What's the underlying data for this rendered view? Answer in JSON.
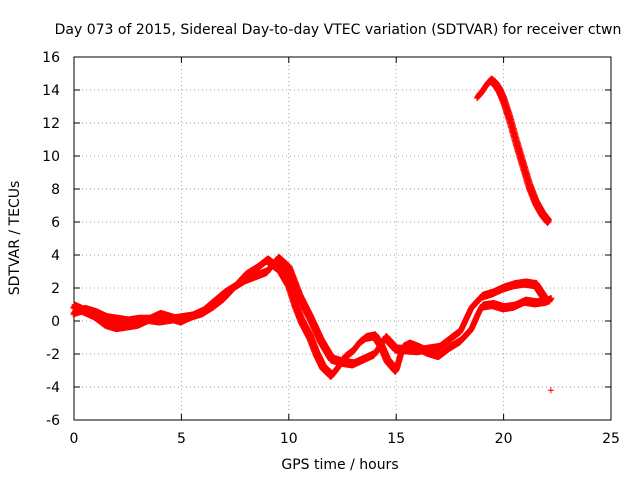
{
  "chart_data": {
    "type": "scatter",
    "title": "Day 073 of 2015, Sidereal Day-to-day VTEC variation (SDTVAR) for receiver ctwn",
    "xlabel": "GPS time / hours",
    "ylabel": "SDTVAR / TECUs",
    "xlim": [
      0,
      25
    ],
    "ylim": [
      -6,
      16
    ],
    "xticks": [
      "0",
      "5",
      "10",
      "15",
      "20",
      "25"
    ],
    "yticks": [
      "-6",
      "-4",
      "-2",
      "0",
      "2",
      "4",
      "6",
      "8",
      "10",
      "12",
      "14",
      "16"
    ],
    "grid": true,
    "marker": "+",
    "color": "#ff0000",
    "series": [
      {
        "name": "SDTVAR",
        "x": [
          0.0,
          0.5,
          1.0,
          1.5,
          2.0,
          2.5,
          3.0,
          3.5,
          4.0,
          4.5,
          5.0,
          5.5,
          6.0,
          6.5,
          7.0,
          7.5,
          8.0,
          8.5,
          9.0,
          9.3,
          9.6,
          10.0,
          10.3,
          10.6,
          11.0,
          11.3,
          11.6,
          12.0,
          12.3,
          12.6,
          13.0,
          13.3,
          13.6,
          14.0,
          14.3,
          14.6,
          15.0,
          15.3,
          15.6,
          16.0,
          16.5,
          17.0,
          17.5,
          18.0,
          18.5,
          18.8,
          19.0,
          19.5,
          20.0,
          20.5,
          21.0,
          21.5,
          22.0,
          22.2
        ],
        "y": [
          0.5,
          0.7,
          0.5,
          0.2,
          0.1,
          0.0,
          0.1,
          0.1,
          0.0,
          0.1,
          0.2,
          0.3,
          0.5,
          0.9,
          1.4,
          2.1,
          2.8,
          3.2,
          3.7,
          3.4,
          3.1,
          2.2,
          1.0,
          0.0,
          -1.0,
          -2.0,
          -2.8,
          -3.3,
          -2.8,
          -2.2,
          -1.8,
          -1.3,
          -1.0,
          -0.9,
          -1.5,
          -2.4,
          -3.0,
          -1.6,
          -1.4,
          -1.6,
          -1.9,
          -2.1,
          -1.6,
          -1.2,
          -0.5,
          0.4,
          0.9,
          1.0,
          0.8,
          0.9,
          1.2,
          1.1,
          1.2,
          1.3
        ]
      },
      {
        "name": "SDTVAR (parallel track)",
        "x": [
          0.0,
          0.5,
          1.0,
          1.5,
          2.0,
          3.0,
          4.0,
          5.0,
          6.0,
          7.0,
          8.0,
          9.0,
          9.5,
          10.0,
          10.5,
          11.0,
          11.5,
          12.0,
          12.5,
          13.0,
          14.0,
          14.5,
          15.0,
          16.0,
          17.0,
          18.0,
          18.5,
          19.0,
          19.5,
          20.0,
          20.5,
          21.0,
          21.5,
          22.0
        ],
        "y": [
          0.9,
          0.6,
          0.3,
          -0.2,
          -0.4,
          -0.2,
          0.4,
          0.0,
          0.6,
          1.7,
          2.5,
          3.0,
          3.8,
          3.2,
          1.5,
          0.2,
          -1.2,
          -2.3,
          -2.5,
          -2.6,
          -2.0,
          -1.0,
          -1.7,
          -1.8,
          -1.6,
          -0.6,
          0.8,
          1.5,
          1.7,
          2.0,
          2.2,
          2.3,
          2.2,
          1.2
        ]
      },
      {
        "name": "SDTVAR (late segment)",
        "x": [
          18.8,
          19.0,
          19.2,
          19.4,
          19.6,
          19.8,
          20.0,
          20.3,
          20.6,
          20.9,
          21.2,
          21.5,
          21.8,
          22.1
        ],
        "y": [
          13.6,
          13.9,
          14.3,
          14.6,
          14.4,
          14.0,
          13.4,
          12.2,
          10.8,
          9.5,
          8.2,
          7.2,
          6.5,
          6.0
        ]
      },
      {
        "name": "SDTVAR (outlier)",
        "x": [
          22.2
        ],
        "y": [
          -4.2
        ]
      }
    ]
  }
}
